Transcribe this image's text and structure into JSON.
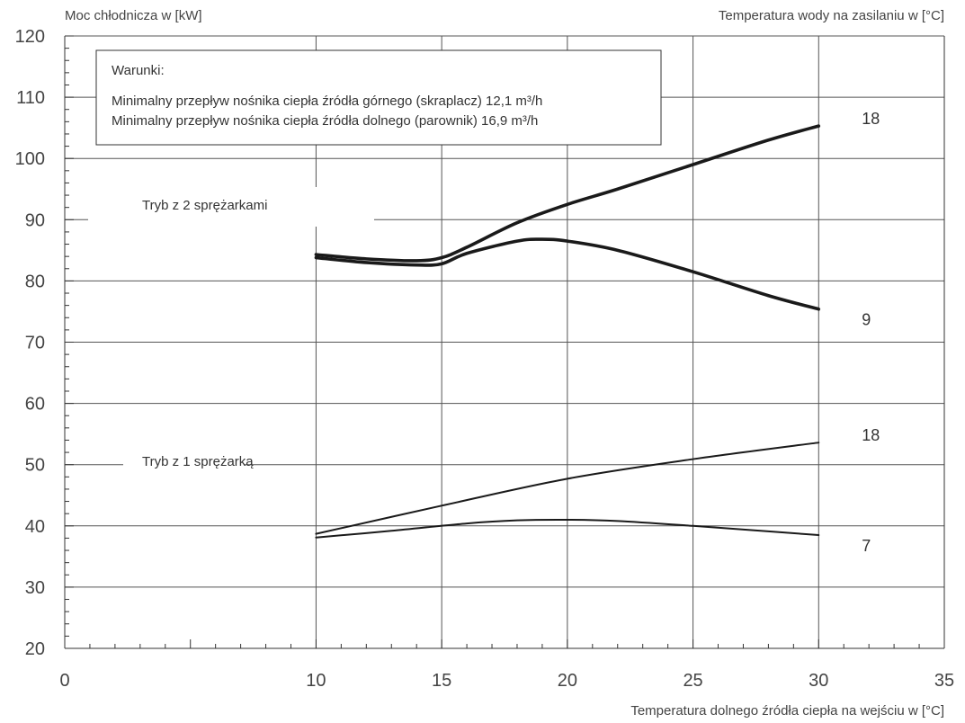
{
  "chart_data": {
    "type": "line",
    "ylabel": "Moc chłodnicza w [kW]",
    "right_label": "Temperatura wody na zasilaniu w [°C]",
    "xlabel": "Temperatura dolnego źródła ciepła na wejściu w [°C]",
    "xlim": [
      0,
      35
    ],
    "ylim": [
      20,
      120
    ],
    "x_ticks": [
      "0",
      "10",
      "15",
      "20",
      "25",
      "30",
      "35"
    ],
    "y_ticks": [
      "20",
      "30",
      "40",
      "50",
      "60",
      "70",
      "80",
      "90",
      "100",
      "110",
      "120"
    ],
    "grid": true,
    "conditions": {
      "title": "Warunki:",
      "lines": [
        "Minimalny przepływ nośnika ciepła źródła górnego (skraplacz) 12,1 m³/h",
        "Minimalny przepływ nośnika ciepła źródła dolnego (parownik) 16,9 m³/h"
      ]
    },
    "mode_labels": {
      "two_compressors": "Tryb z 2 sprężarkami",
      "one_compressor": "Tryb z 1 sprężarką"
    },
    "series": [
      {
        "name": "18",
        "group": "2",
        "x": [
          10,
          12,
          14,
          15,
          16,
          18,
          20,
          22,
          25,
          28,
          30
        ],
        "y": [
          84.3,
          83.6,
          83.3,
          83.8,
          85.5,
          89.5,
          92.5,
          95,
          99,
          103,
          105.3
        ]
      },
      {
        "name": "9",
        "group": "2",
        "x": [
          10,
          12,
          14,
          15,
          16,
          18,
          19,
          20,
          22,
          25,
          28,
          30
        ],
        "y": [
          83.8,
          83,
          82.6,
          82.8,
          84.5,
          86.5,
          86.8,
          86.5,
          85,
          81.5,
          77.6,
          75.4
        ]
      },
      {
        "name": "18",
        "group": "1",
        "x": [
          10,
          15,
          20,
          25,
          30
        ],
        "y": [
          38.7,
          43.3,
          47.7,
          50.9,
          53.6
        ]
      },
      {
        "name": "7",
        "group": "1",
        "x": [
          10,
          13,
          16,
          18,
          20,
          22,
          25,
          28,
          30
        ],
        "y": [
          38.1,
          39.2,
          40.4,
          40.9,
          41,
          40.8,
          40,
          39.1,
          38.5
        ]
      }
    ]
  }
}
